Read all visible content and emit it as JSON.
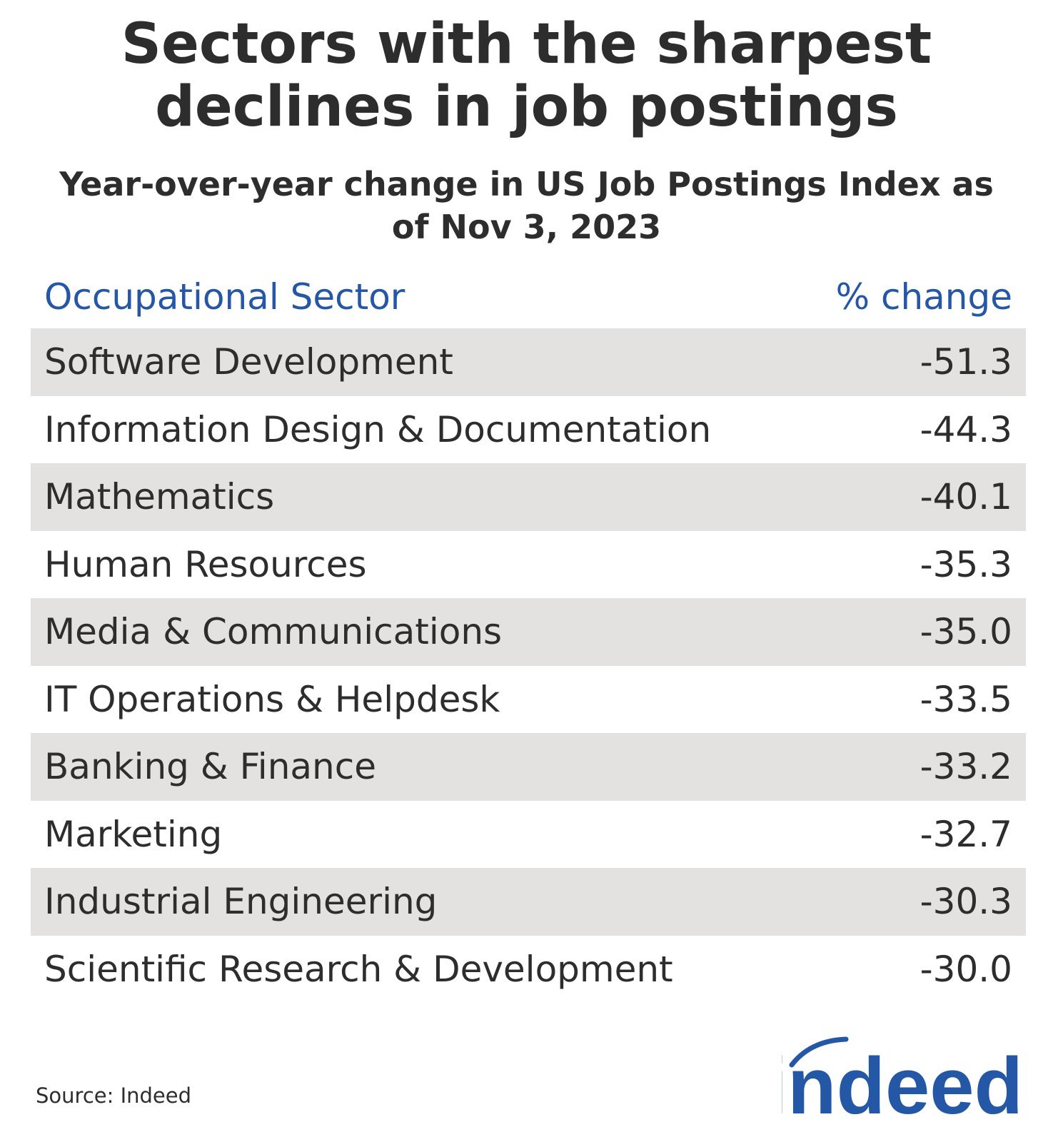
{
  "header": {
    "title": "Sectors with the sharpest declines in job postings",
    "subtitle": "Year-over-year change in US Job Postings Index as of Nov 3, 2023"
  },
  "table": {
    "columns": [
      "Occupational Sector",
      "% change"
    ],
    "rows": [
      [
        "Software Development",
        "-51.3"
      ],
      [
        "Information Design & Documentation",
        "-44.3"
      ],
      [
        "Mathematics",
        "-40.1"
      ],
      [
        "Human Resources",
        "-35.3"
      ],
      [
        "Media & Communications",
        "-35.0"
      ],
      [
        "IT Operations & Helpdesk",
        "-33.5"
      ],
      [
        "Banking & Finance",
        "-33.2"
      ],
      [
        "Marketing",
        "-32.7"
      ],
      [
        "Industrial Engineering",
        "-30.3"
      ],
      [
        "Scientific Research & Development",
        "-30.0"
      ]
    ]
  },
  "footer": {
    "source": "Source: Indeed",
    "logo": "indeed"
  }
}
